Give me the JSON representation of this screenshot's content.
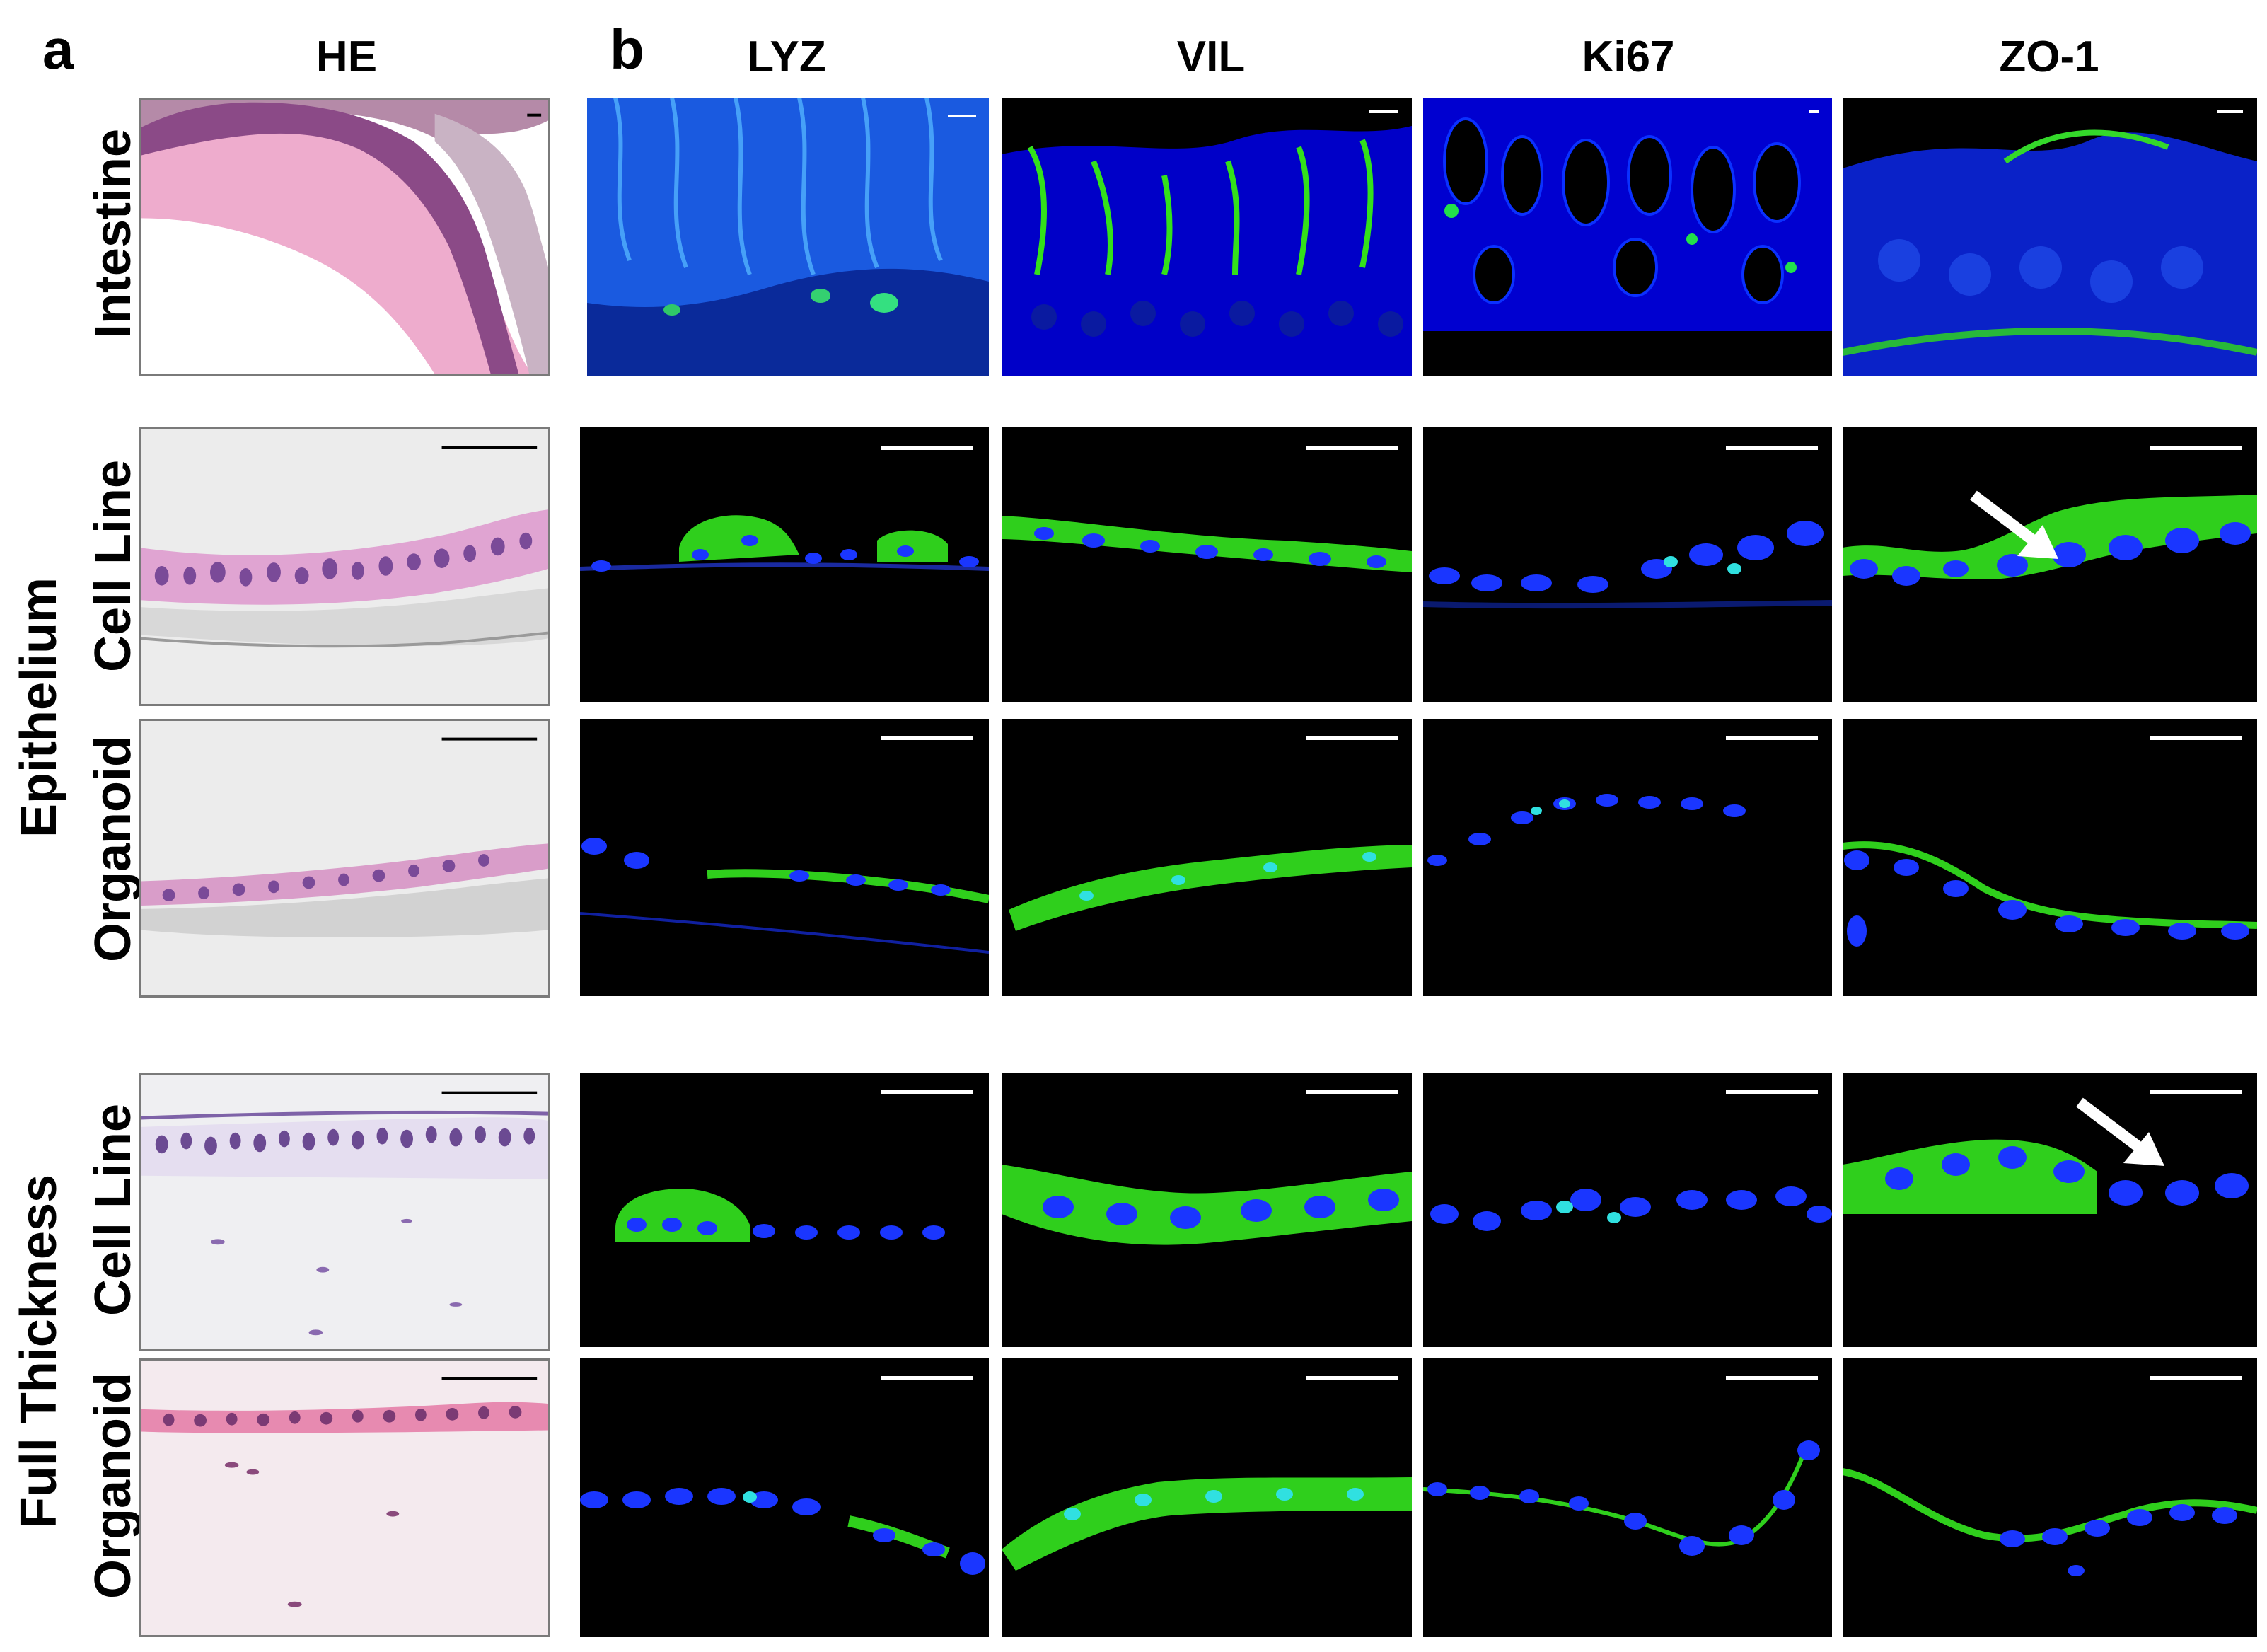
{
  "panels": {
    "a": "a",
    "b": "b"
  },
  "columns": {
    "he": "HE",
    "lyz": "LYZ",
    "vil": "VIL",
    "ki67": "Ki67",
    "zo1": "ZO-1"
  },
  "rows": {
    "intestine": "Intestine",
    "epithelium": "Epithelium",
    "full_thickness": "Full Thickness",
    "cell_line": "Cell Line",
    "organoid": "Organoid"
  },
  "colors": {
    "he_pink": "#e9a6c8",
    "he_purple": "#7a3a86",
    "nuclei_blue": "#1830ff",
    "stain_green": "#33e01a",
    "scale_bar": "#ffffff"
  },
  "icons": [
    "arrow-icon",
    "scale-bar"
  ]
}
